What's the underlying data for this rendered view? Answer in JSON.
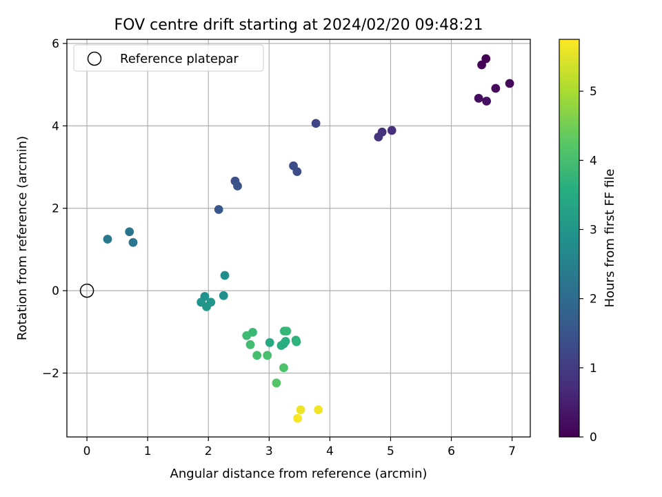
{
  "chart_data": {
    "type": "scatter",
    "title": "FOV centre drift starting at 2024/02/20 09:48:21",
    "xlabel": "Angular distance from reference (arcmin)",
    "ylabel": "Rotation from reference (arcmin)",
    "colorbar_label": "Hours from first FF file",
    "colormap": "viridis",
    "xlim": [
      -0.33,
      7.3
    ],
    "ylim": [
      -3.55,
      6.1
    ],
    "clim": [
      0,
      5.75
    ],
    "xticks": [
      "0",
      "1",
      "2",
      "3",
      "4",
      "5",
      "6",
      "7"
    ],
    "yticks": [
      "−2",
      "0",
      "2",
      "4",
      "6"
    ],
    "colorbar_ticks": [
      "0",
      "1",
      "2",
      "3",
      "4",
      "5"
    ],
    "grid": true,
    "legend": {
      "label": "Reference platepar",
      "placement": "top-left"
    },
    "reference_point": {
      "x": 0,
      "y": 0
    },
    "points": [
      {
        "x": 6.57,
        "y": 5.63,
        "hours": 0.0
      },
      {
        "x": 6.5,
        "y": 5.48,
        "hours": 0.05
      },
      {
        "x": 6.96,
        "y": 5.03,
        "hours": 0.1
      },
      {
        "x": 6.73,
        "y": 4.91,
        "hours": 0.15
      },
      {
        "x": 6.45,
        "y": 4.67,
        "hours": 0.2
      },
      {
        "x": 6.58,
        "y": 4.6,
        "hours": 0.25
      },
      {
        "x": 5.02,
        "y": 3.89,
        "hours": 0.75
      },
      {
        "x": 4.86,
        "y": 3.85,
        "hours": 0.8
      },
      {
        "x": 4.8,
        "y": 3.73,
        "hours": 0.85
      },
      {
        "x": 3.77,
        "y": 4.06,
        "hours": 1.25
      },
      {
        "x": 3.4,
        "y": 3.03,
        "hours": 1.3
      },
      {
        "x": 3.46,
        "y": 2.89,
        "hours": 1.35
      },
      {
        "x": 2.44,
        "y": 2.66,
        "hours": 1.4
      },
      {
        "x": 2.48,
        "y": 2.54,
        "hours": 1.45
      },
      {
        "x": 2.17,
        "y": 1.97,
        "hours": 1.55
      },
      {
        "x": 0.7,
        "y": 1.43,
        "hours": 2.2
      },
      {
        "x": 0.76,
        "y": 1.17,
        "hours": 2.25
      },
      {
        "x": 0.34,
        "y": 1.25,
        "hours": 2.3
      },
      {
        "x": 2.27,
        "y": 0.37,
        "hours": 2.8
      },
      {
        "x": 2.25,
        "y": -0.12,
        "hours": 2.85
      },
      {
        "x": 1.94,
        "y": -0.14,
        "hours": 2.9
      },
      {
        "x": 1.88,
        "y": -0.28,
        "hours": 2.95
      },
      {
        "x": 2.04,
        "y": -0.28,
        "hours": 3.0
      },
      {
        "x": 1.97,
        "y": -0.39,
        "hours": 3.05
      },
      {
        "x": 3.01,
        "y": -1.26,
        "hours": 3.45
      },
      {
        "x": 3.24,
        "y": -1.29,
        "hours": 3.5
      },
      {
        "x": 3.2,
        "y": -1.33,
        "hours": 3.55
      },
      {
        "x": 3.27,
        "y": -1.23,
        "hours": 3.6
      },
      {
        "x": 3.44,
        "y": -1.2,
        "hours": 3.65
      },
      {
        "x": 3.45,
        "y": -1.24,
        "hours": 3.7
      },
      {
        "x": 3.25,
        "y": -0.98,
        "hours": 3.75
      },
      {
        "x": 3.29,
        "y": -0.98,
        "hours": 3.8
      },
      {
        "x": 2.73,
        "y": -1.01,
        "hours": 3.85
      },
      {
        "x": 2.63,
        "y": -1.09,
        "hours": 3.9
      },
      {
        "x": 2.69,
        "y": -1.31,
        "hours": 3.95
      },
      {
        "x": 2.8,
        "y": -1.57,
        "hours": 4.0
      },
      {
        "x": 2.97,
        "y": -1.57,
        "hours": 4.05
      },
      {
        "x": 3.24,
        "y": -1.87,
        "hours": 4.1
      },
      {
        "x": 3.12,
        "y": -2.24,
        "hours": 4.2
      },
      {
        "x": 3.52,
        "y": -2.89,
        "hours": 5.6
      },
      {
        "x": 3.81,
        "y": -2.89,
        "hours": 5.65
      },
      {
        "x": 3.47,
        "y": -3.1,
        "hours": 5.7
      }
    ]
  }
}
